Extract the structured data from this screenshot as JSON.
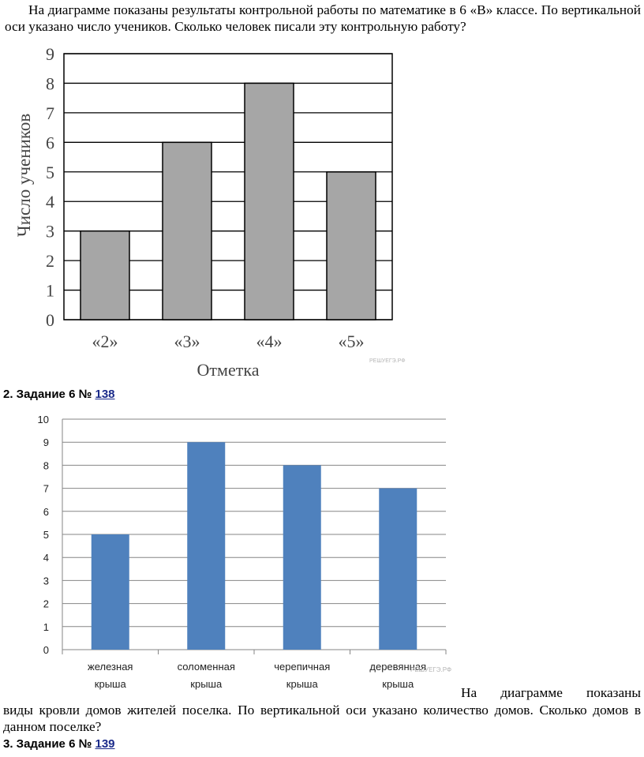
{
  "task1": {
    "question": "На диаграмме показаны результаты контрольной работы по математике в 6 «В» классе. По вертикальной оси указано число учеников. Сколько человек писали эту контрольную работу?"
  },
  "task2": {
    "heading_prefix": "2. Задание 6 № ",
    "number": "138",
    "question_line1": "На диаграмме показаны",
    "question_rest": "виды кровли домов жителей поселка. По вертикальной оси указано количество домов. Сколько домов в данном поселке?"
  },
  "task3": {
    "heading_prefix": "3. Задание 6 № ",
    "number": "139"
  },
  "chart_data": [
    {
      "type": "bar",
      "categories": [
        "«2»",
        "«3»",
        "«4»",
        "«5»"
      ],
      "values": [
        3,
        6,
        8,
        5
      ],
      "xlabel": "Отметка",
      "ylabel": "Число учеников",
      "ylim": [
        0,
        9
      ],
      "yticks": [
        0,
        1,
        2,
        3,
        4,
        5,
        6,
        7,
        8,
        9
      ],
      "grid": true,
      "watermark": "РЕШУЕГЭ.РФ",
      "colors": {
        "bar": "#a6a6a6",
        "edge": "#000000"
      }
    },
    {
      "type": "bar",
      "categories": [
        [
          "железная",
          "крыша"
        ],
        [
          "соломенная",
          "крыша"
        ],
        [
          "черепичная",
          "крыша"
        ],
        [
          "деревянная",
          "крыша"
        ]
      ],
      "values": [
        5,
        9,
        8,
        7
      ],
      "ylim": [
        0,
        10
      ],
      "yticks": [
        0,
        1,
        2,
        3,
        4,
        5,
        6,
        7,
        8,
        9,
        10
      ],
      "grid": true,
      "watermark": "РЕШУЕГЭ.РФ",
      "colors": {
        "bar": "#4f81bd",
        "grid": "#868686"
      }
    }
  ]
}
